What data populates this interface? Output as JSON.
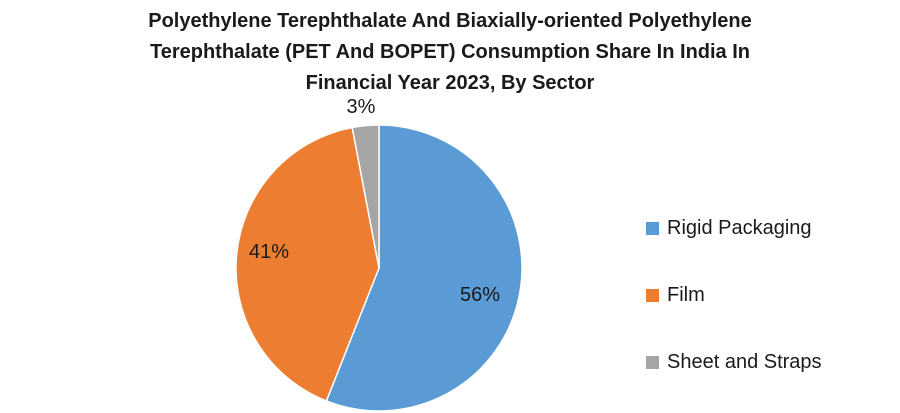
{
  "chart_data": {
    "type": "pie",
    "title_lines": [
      "Polyethylene Terephthalate And Biaxially-oriented Polyethylene",
      "Terephthalate (PET And BOPET) Consumption  Share In India In",
      "Financial  Year 2023, By Sector"
    ],
    "slices": [
      {
        "name": "Rigid Packaging",
        "value": 56,
        "label": "56%",
        "color": "#5b9bd5"
      },
      {
        "name": "Film",
        "value": 41,
        "label": "41%",
        "color": "#ed7d31"
      },
      {
        "name": "Sheet and Straps",
        "value": 3,
        "label": "3%",
        "color": "#a5a5a5"
      }
    ],
    "start_angle": "12 o'clock",
    "direction": "clockwise",
    "legend_position": "right"
  }
}
